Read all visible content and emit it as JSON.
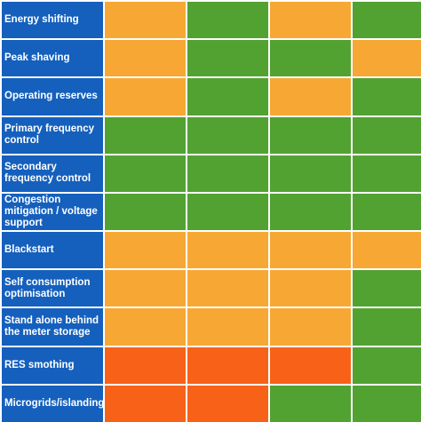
{
  "chart_data": {
    "type": "heatmap",
    "rows": [
      "Energy shifting",
      "Peak shaving",
      "Operating reserves",
      "Primary frequency control",
      "Secondary frequency control",
      "Congestion mitigation / voltage support",
      "Blackstart",
      "Self consumption optimisation",
      "Stand alone behind the meter storage",
      "RES smothing",
      "Microgrids/islanding"
    ],
    "columns_count": 4,
    "legend": {
      "orange": "#f7a834",
      "green": "#52a232",
      "red_orange": "#f76218"
    },
    "cells": [
      [
        "orange",
        "green",
        "orange",
        "green"
      ],
      [
        "orange",
        "green",
        "green",
        "orange"
      ],
      [
        "orange",
        "green",
        "orange",
        "green"
      ],
      [
        "green",
        "green",
        "green",
        "green"
      ],
      [
        "green",
        "green",
        "green",
        "green"
      ],
      [
        "green",
        "green",
        "green",
        "green"
      ],
      [
        "orange",
        "orange",
        "orange",
        "orange"
      ],
      [
        "orange",
        "orange",
        "orange",
        "green"
      ],
      [
        "orange",
        "orange",
        "orange",
        "green"
      ],
      [
        "red_orange",
        "red_orange",
        "red_orange",
        "green"
      ],
      [
        "red_orange",
        "red_orange",
        "green",
        "green"
      ]
    ]
  },
  "colors": {
    "label_bg": "#1560bd",
    "label_text": "#ffffff",
    "grid_gap": "#ffffff"
  }
}
